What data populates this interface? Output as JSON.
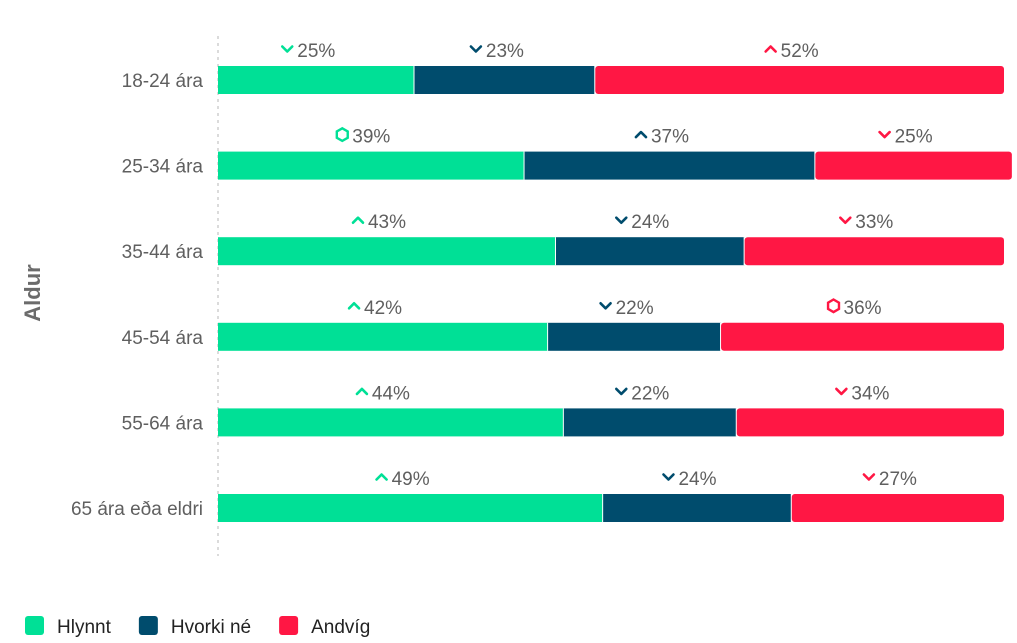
{
  "chart_data": {
    "type": "bar",
    "orientation": "horizontal",
    "stacked": true,
    "normalized": true,
    "ylabel": "Aldur",
    "xlim": [
      0,
      100
    ],
    "categories": [
      "18-24 ára",
      "25-34 ára",
      "35-44 ára",
      "45-54 ára",
      "55-64 ára",
      "65 ára eða eldri"
    ],
    "series": [
      {
        "name": "Hlynnt",
        "color": "#00e096",
        "values": [
          25,
          39,
          43,
          42,
          44,
          49
        ],
        "labels": [
          "25%",
          "39%",
          "43%",
          "42%",
          "44%",
          "49%"
        ],
        "markers": [
          "down",
          "hexagon",
          "up",
          "up",
          "up",
          "up"
        ]
      },
      {
        "name": "Hvorki né",
        "color": "#004c6d",
        "values": [
          23,
          37,
          24,
          22,
          22,
          24
        ],
        "labels": [
          "23%",
          "37%",
          "24%",
          "22%",
          "22%",
          "24%"
        ],
        "markers": [
          "down",
          "up",
          "down",
          "down",
          "down",
          "down"
        ]
      },
      {
        "name": "Andvíg",
        "color": "#ff1744",
        "values": [
          52,
          25,
          33,
          36,
          34,
          27
        ],
        "labels": [
          "52%",
          "25%",
          "33%",
          "36%",
          "34%",
          "27%"
        ],
        "markers": [
          "up",
          "down",
          "down",
          "hexagon",
          "down",
          "down"
        ]
      }
    ],
    "legend": {
      "position": "bottom-left",
      "items": [
        "Hlynnt",
        "Hvorki né",
        "Andvíg"
      ]
    },
    "grid": false
  }
}
